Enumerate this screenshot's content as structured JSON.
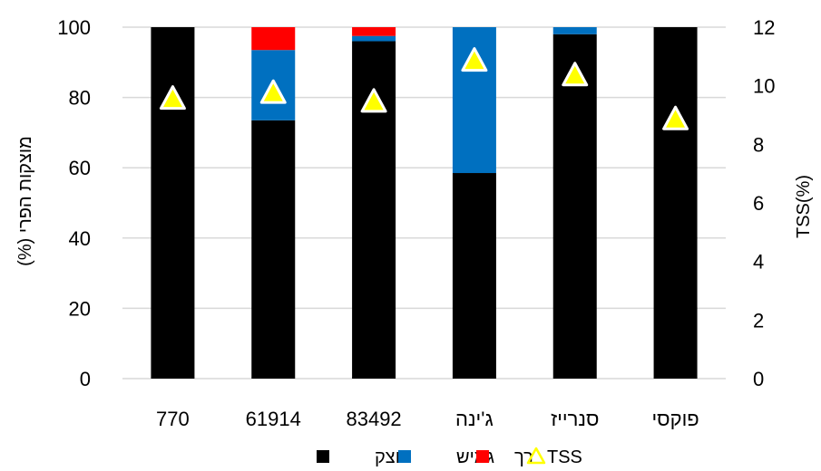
{
  "chart_data": {
    "type": "bar",
    "stacked": true,
    "categories": [
      "770",
      "61914",
      "83492",
      "ג'ינה",
      "סנרייז",
      "פוקסי"
    ],
    "series": [
      {
        "name": "מוצק",
        "color": "#000000",
        "values": [
          100,
          73.5,
          96,
          58.5,
          98,
          100
        ]
      },
      {
        "name": "גמיש",
        "color": "#0070c0",
        "values": [
          0,
          20,
          1.5,
          41.5,
          2,
          0
        ]
      },
      {
        "name": "רך",
        "color": "#ff0000",
        "values": [
          0,
          6.5,
          2.5,
          0,
          0,
          0
        ]
      }
    ],
    "secondary_series": {
      "name": "TSS",
      "type": "scatter",
      "marker": "triangle",
      "fill": "#ffff00",
      "stroke": "#ffffff",
      "values": [
        9.6,
        9.8,
        9.5,
        10.9,
        10.4,
        8.9
      ]
    },
    "ylabel": "מוצקות הפרי (%)",
    "y2label": "TSS(%)",
    "ylim": [
      0,
      100
    ],
    "y2lim": [
      0,
      12
    ],
    "yticks": [
      0,
      20,
      40,
      60,
      80,
      100
    ],
    "y2ticks": [
      0,
      2,
      4,
      6,
      8,
      10,
      12
    ],
    "grid": true,
    "legend_position": "bottom",
    "gridline_color": "#d9d9d9"
  }
}
